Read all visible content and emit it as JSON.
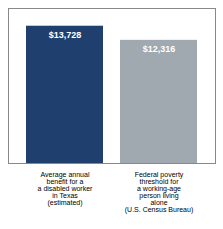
{
  "chart_data": {
    "type": "bar",
    "categories": [
      "Average annual\nbenefit for a\na disabled worker\nin Texas\n(estimated)",
      "Federal poverty\nthreshold for\na working-age\nperson living\nalone\n(U.S. Census Bureau)"
    ],
    "values": [
      13728,
      12316
    ],
    "value_labels": [
      "$13,728",
      "$12,316"
    ],
    "data_labels": true,
    "colors": [
      "#1f3f6e",
      "#a0a8b0"
    ],
    "ylim": [
      0,
      15500
    ],
    "tick_labels": "x",
    "grid": false
  }
}
